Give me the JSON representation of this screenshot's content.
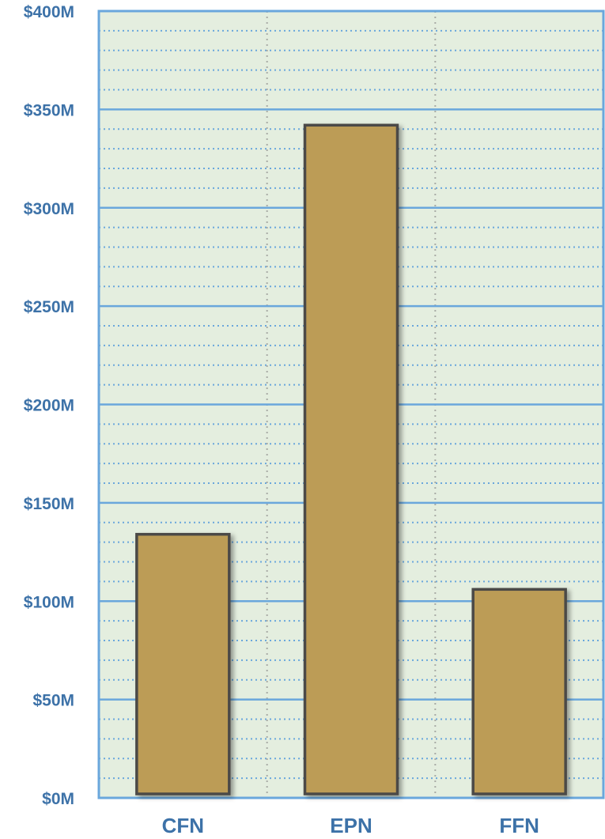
{
  "chart_data": {
    "type": "bar",
    "title": "",
    "xlabel": "",
    "ylabel": "",
    "categories": [
      "CFN",
      "EPN",
      "FFN"
    ],
    "values": [
      134,
      342,
      106
    ],
    "ylim": [
      0,
      400
    ],
    "y_ticks": [
      0,
      50,
      100,
      150,
      200,
      250,
      300,
      350,
      400
    ],
    "y_tick_labels": [
      "$0M",
      "$50M",
      "$100M",
      "$150M",
      "$200M",
      "$250M",
      "$300M",
      "$350M",
      "$400M"
    ],
    "minor_step": 10,
    "grid": true,
    "legend": "none"
  },
  "colors": {
    "plot_background": "#e4eedf",
    "major_grid": "#6aa7dc",
    "minor_grid": "#6aa7dc",
    "vertical_grid": "#a9aba6",
    "axis": "#6aa7dc",
    "bar_fill": "#bc9c57",
    "bar_stroke": "#4b4a47",
    "label": "#3d72a8"
  }
}
